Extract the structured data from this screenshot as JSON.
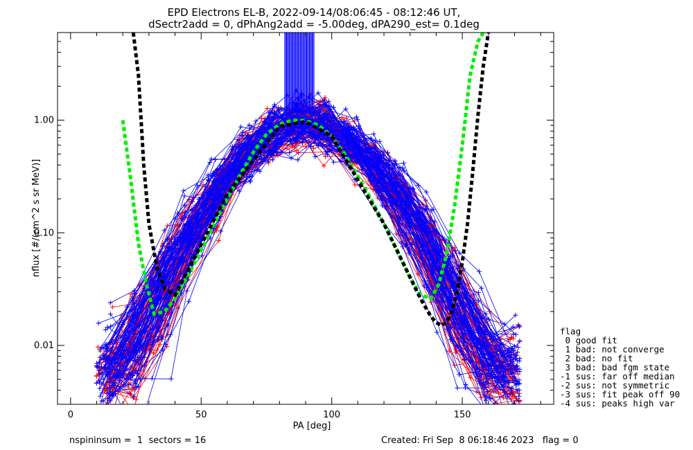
{
  "chart_data": {
    "type": "line",
    "title": "EPD Electrons EL-B, 2022-09-14/08:06:45 - 08:12:46 UT,",
    "subtitle": "dSectr2add = 0, dPhAng2add = -5.00deg, dPA290_est=   0.1deg",
    "xlabel": "PA [deg]",
    "ylabel": "nflux [#/(cm^2 s sr MeV)]",
    "xlim": [
      -5,
      185
    ],
    "ylim": [
      0.003,
      6.0
    ],
    "yscale": "log",
    "x_ticks": [
      "0",
      "50",
      "100",
      "150"
    ],
    "y_ticks": [
      "0.01",
      "0.10",
      "1.00"
    ],
    "red_color": "#ff0000",
    "blue_color": "#0000ff",
    "green_color": "#00ee00",
    "black_color": "#000000",
    "series": [
      {
        "name": "",
        "color": "#00ee00",
        "style": "dashed-thick",
        "x": [
          20,
          23,
          26,
          29,
          32,
          36,
          40,
          45,
          50,
          55,
          60,
          65,
          70,
          75,
          80,
          85,
          90,
          95,
          100,
          105,
          110,
          115,
          120,
          125,
          130,
          134,
          138,
          141,
          144,
          147,
          150,
          153,
          156,
          158
        ],
        "y": [
          1.0,
          0.3,
          0.08,
          0.035,
          0.019,
          0.02,
          0.026,
          0.042,
          0.07,
          0.12,
          0.2,
          0.33,
          0.52,
          0.75,
          0.92,
          1.0,
          0.99,
          0.9,
          0.72,
          0.5,
          0.32,
          0.2,
          0.12,
          0.07,
          0.04,
          0.028,
          0.026,
          0.035,
          0.065,
          0.17,
          0.6,
          2.5,
          5.0,
          6.0
        ]
      },
      {
        "name": "",
        "color": "#000000",
        "style": "dashed-thick",
        "x": [
          24,
          26,
          28,
          30,
          33,
          36,
          40,
          60,
          80,
          90,
          100,
          120,
          134,
          138,
          140,
          142,
          144,
          146,
          148,
          150,
          152,
          154,
          156,
          158,
          160
        ],
        "y": [
          6.0,
          2.5,
          0.4,
          0.12,
          0.05,
          0.032,
          0.028,
          0.22,
          0.88,
          0.97,
          0.72,
          0.12,
          0.026,
          0.018,
          0.016,
          0.015,
          0.016,
          0.02,
          0.03,
          0.055,
          0.12,
          0.35,
          1.1,
          3.0,
          6.0
        ]
      }
    ],
    "legend_title": "flag",
    "legend": [
      " 0 good fit",
      " 1 bad: not converge",
      " 2 bad: no fit",
      " 3 bad: bad fgm state",
      "-1 sus: far off median",
      "-2 sus: not symmetric",
      "-3 sus: fit peak off 90",
      "-4 sus: peaks high var"
    ],
    "legend_placement": "right"
  },
  "footer": {
    "left": "nspininsum =  1  sectors = 16",
    "right": "Created: Fri Sep  8 06:18:46 2023   flag = 0"
  }
}
